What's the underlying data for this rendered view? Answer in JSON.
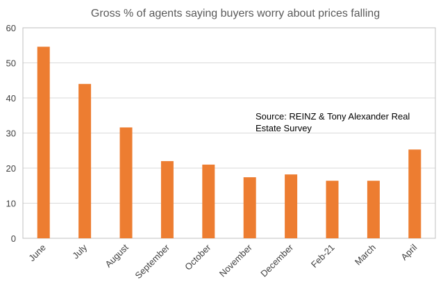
{
  "chart_data": {
    "type": "bar",
    "title": "Gross % of agents saying buyers worry about prices falling",
    "categories": [
      "June",
      "July",
      "August",
      "September",
      "October",
      "November",
      "December",
      "Feb-21",
      "March",
      "April"
    ],
    "values": [
      54.6,
      44.0,
      31.6,
      22.0,
      21.0,
      17.4,
      18.2,
      16.4,
      16.4,
      25.3
    ],
    "xlabel": "",
    "ylabel": "",
    "ylim": [
      0,
      60
    ],
    "yticks": [
      0,
      10,
      20,
      30,
      40,
      50,
      60
    ],
    "grid": true,
    "legend": "none",
    "bar_color": "#ED7D31",
    "grid_color": "#D9D9D9",
    "axis_color": "#BFBFBF",
    "annotation": {
      "lines": [
        "Source: REINZ & Tony Alexander Real",
        "Estate Survey"
      ]
    }
  }
}
